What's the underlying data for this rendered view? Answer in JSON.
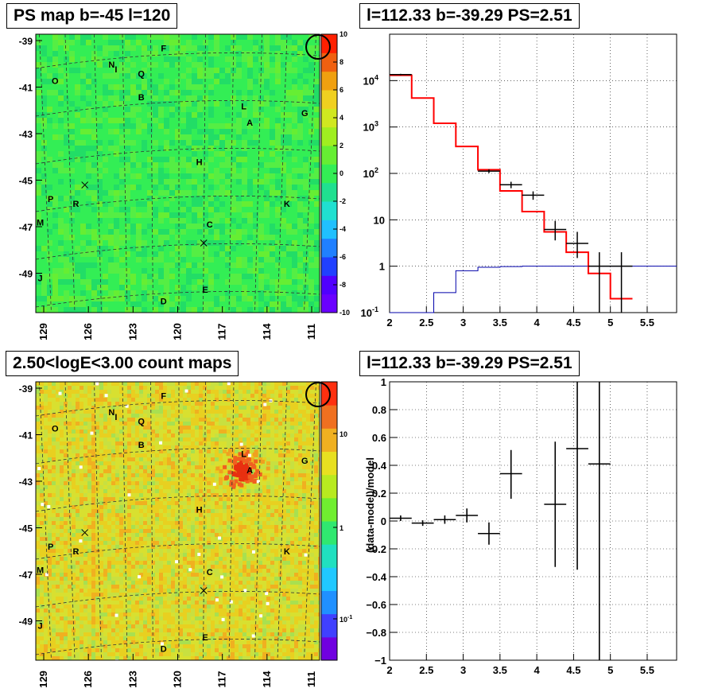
{
  "panels": {
    "ps_map_title": "PS map b=-45 l=120",
    "spectrum_title": "l=112.33 b=-39.29 PS=2.51",
    "count_map_title": "2.50<logE<3.00 count maps",
    "residual_title": "l=112.33 b=-39.29 PS=2.51"
  },
  "colors": {
    "map_green": "#33ee55",
    "count_bg": "#d8e030",
    "model_red": "#ff0000",
    "model_blue": "#0000aa",
    "data_black": "#000000"
  },
  "chart_data": [
    {
      "type": "heatmap",
      "title": "PS map b=-45 l=120",
      "x_ticks": [
        "129",
        "126",
        "123",
        "120",
        "117",
        "114",
        "111"
      ],
      "y_ticks": [
        "-39",
        "-41",
        "-43",
        "-45",
        "-47",
        "-49"
      ],
      "colorbar_ticks": [
        "10",
        "8",
        "6",
        "4",
        "2",
        "0",
        "-2",
        "-4",
        "-6",
        "-8",
        "-10"
      ],
      "colorbar_range": [
        -10,
        10
      ],
      "sources": [
        {
          "label": "F",
          "l": 121,
          "b": -39.4
        },
        {
          "label": "N",
          "l": 124.5,
          "b": -40.1
        },
        {
          "label": "I",
          "l": 124.2,
          "b": -40.3
        },
        {
          "label": "Q",
          "l": 122.5,
          "b": -40.5
        },
        {
          "label": "O",
          "l": 128.3,
          "b": -40.8
        },
        {
          "label": "B",
          "l": 122.5,
          "b": -41.5
        },
        {
          "label": "L",
          "l": 115.6,
          "b": -41.9
        },
        {
          "label": "G",
          "l": 111.5,
          "b": -42.2
        },
        {
          "label": "A",
          "l": 115.2,
          "b": -42.6
        },
        {
          "label": "H",
          "l": 118.6,
          "b": -44.3
        },
        {
          "label": "P",
          "l": 128.6,
          "b": -45.9
        },
        {
          "label": "R",
          "l": 126.9,
          "b": -46.1
        },
        {
          "label": "K",
          "l": 112.7,
          "b": -46.1
        },
        {
          "label": "M",
          "l": 129.3,
          "b": -46.9
        },
        {
          "label": "C",
          "l": 117.9,
          "b": -47
        },
        {
          "label": "J",
          "l": 129.3,
          "b": -49.3
        },
        {
          "label": "E",
          "l": 118.2,
          "b": -49.8
        },
        {
          "label": "D",
          "l": 121,
          "b": -50.3
        }
      ],
      "crosses": [
        {
          "l": 126.3,
          "b": -45.3
        },
        {
          "l": 118.3,
          "b": -47.8
        }
      ],
      "circle": {
        "l": 110.9,
        "b": -39.5
      }
    },
    {
      "type": "line",
      "title": "l=112.33 b=-39.29 PS=2.51",
      "xlim": [
        2,
        5.9
      ],
      "ylim": [
        0.1,
        100000
      ],
      "y_scale": "log",
      "x_ticks": [
        "2",
        "2.5",
        "3",
        "3.5",
        "4",
        "4.5",
        "5",
        "5.5"
      ],
      "y_ticks": [
        "10^-1",
        "1",
        "10",
        "10^2",
        "10^3",
        "10^4"
      ],
      "series": [
        {
          "color": "red",
          "edges": [
            2,
            2.3,
            2.6,
            2.9,
            3.2,
            3.5,
            3.8,
            4.1,
            4.4,
            4.7,
            5.0,
            5.3
          ],
          "values": [
            13000,
            4200,
            1200,
            380,
            120,
            42,
            15,
            5.5,
            2,
            0.7,
            0.2
          ]
        },
        {
          "color": "blue",
          "edges": [
            2,
            2.3,
            2.6,
            2.9,
            3.2,
            3.5,
            3.8,
            4.1,
            4.4,
            4.7,
            5.0,
            5.3,
            5.9
          ],
          "values": [
            0.03,
            0.1,
            0.27,
            0.8,
            0.95,
            0.98,
            1,
            1,
            1,
            1,
            1,
            1
          ]
        },
        {
          "color": "black",
          "points": [
            {
              "x": 2.15,
              "y": 13500,
              "xe": 0.15,
              "ylo": 13000,
              "yhi": 14000
            },
            {
              "x": 3.35,
              "y": 112,
              "xe": 0.15,
              "ylo": 102,
              "yhi": 122
            },
            {
              "x": 3.65,
              "y": 57,
              "xe": 0.15,
              "ylo": 48,
              "yhi": 66
            },
            {
              "x": 3.95,
              "y": 34,
              "xe": 0.15,
              "ylo": 27,
              "yhi": 41
            },
            {
              "x": 4.25,
              "y": 6.2,
              "xe": 0.15,
              "ylo": 3.6,
              "yhi": 9.5
            },
            {
              "x": 4.55,
              "y": 3.1,
              "xe": 0.15,
              "ylo": 1.5,
              "yhi": 5.5
            },
            {
              "x": 4.85,
              "y": 1,
              "xe": 0.15,
              "ylo": 0.1,
              "yhi": 2
            },
            {
              "x": 5.15,
              "y": 1,
              "xe": 0.15,
              "ylo": 0.1,
              "yhi": 2
            }
          ]
        }
      ]
    },
    {
      "type": "heatmap",
      "title": "2.50<logE<3.00 count maps",
      "x_ticks": [
        "129",
        "126",
        "123",
        "120",
        "117",
        "114",
        "111"
      ],
      "y_ticks": [
        "-39",
        "-41",
        "-43",
        "-45",
        "-47",
        "-49"
      ],
      "colorbar_ticks": [
        "10",
        "1",
        "10^-1"
      ],
      "colorbar_scale": "log"
    },
    {
      "type": "scatter",
      "title": "l=112.33 b=-39.29 PS=2.51",
      "ylabel": "(data-model)/model",
      "xlim": [
        2,
        5.9
      ],
      "ylim": [
        -1,
        1
      ],
      "x_ticks": [
        "2",
        "2.5",
        "3",
        "3.5",
        "4",
        "4.5",
        "5",
        "5.5"
      ],
      "y_ticks": [
        "1",
        "0.8",
        "0.6",
        "0.4",
        "0.2",
        "0",
        "-0.2",
        "-0.4",
        "-0.6",
        "-0.8",
        "-1"
      ],
      "points": [
        {
          "x": 2.15,
          "y": 0.02,
          "xe": 0.15,
          "ylo": 0.0,
          "yhi": 0.04
        },
        {
          "x": 2.45,
          "y": -0.015,
          "xe": 0.15,
          "ylo": -0.035,
          "yhi": 0.005
        },
        {
          "x": 2.75,
          "y": 0.01,
          "xe": 0.15,
          "ylo": -0.02,
          "yhi": 0.04
        },
        {
          "x": 3.05,
          "y": 0.04,
          "xe": 0.15,
          "ylo": -0.01,
          "yhi": 0.09
        },
        {
          "x": 3.35,
          "y": -0.09,
          "xe": 0.15,
          "ylo": -0.17,
          "yhi": -0.01
        },
        {
          "x": 3.65,
          "y": 0.34,
          "xe": 0.15,
          "ylo": 0.16,
          "yhi": 0.51
        },
        {
          "x": 4.25,
          "y": 0.12,
          "xe": 0.15,
          "ylo": -0.33,
          "yhi": 0.57
        },
        {
          "x": 4.55,
          "y": 0.52,
          "xe": 0.15,
          "ylo": -0.35,
          "yhi": 1.0
        },
        {
          "x": 4.85,
          "y": 0.41,
          "xe": 0.15,
          "ylo": -1.0,
          "yhi": 1.0
        }
      ]
    }
  ]
}
